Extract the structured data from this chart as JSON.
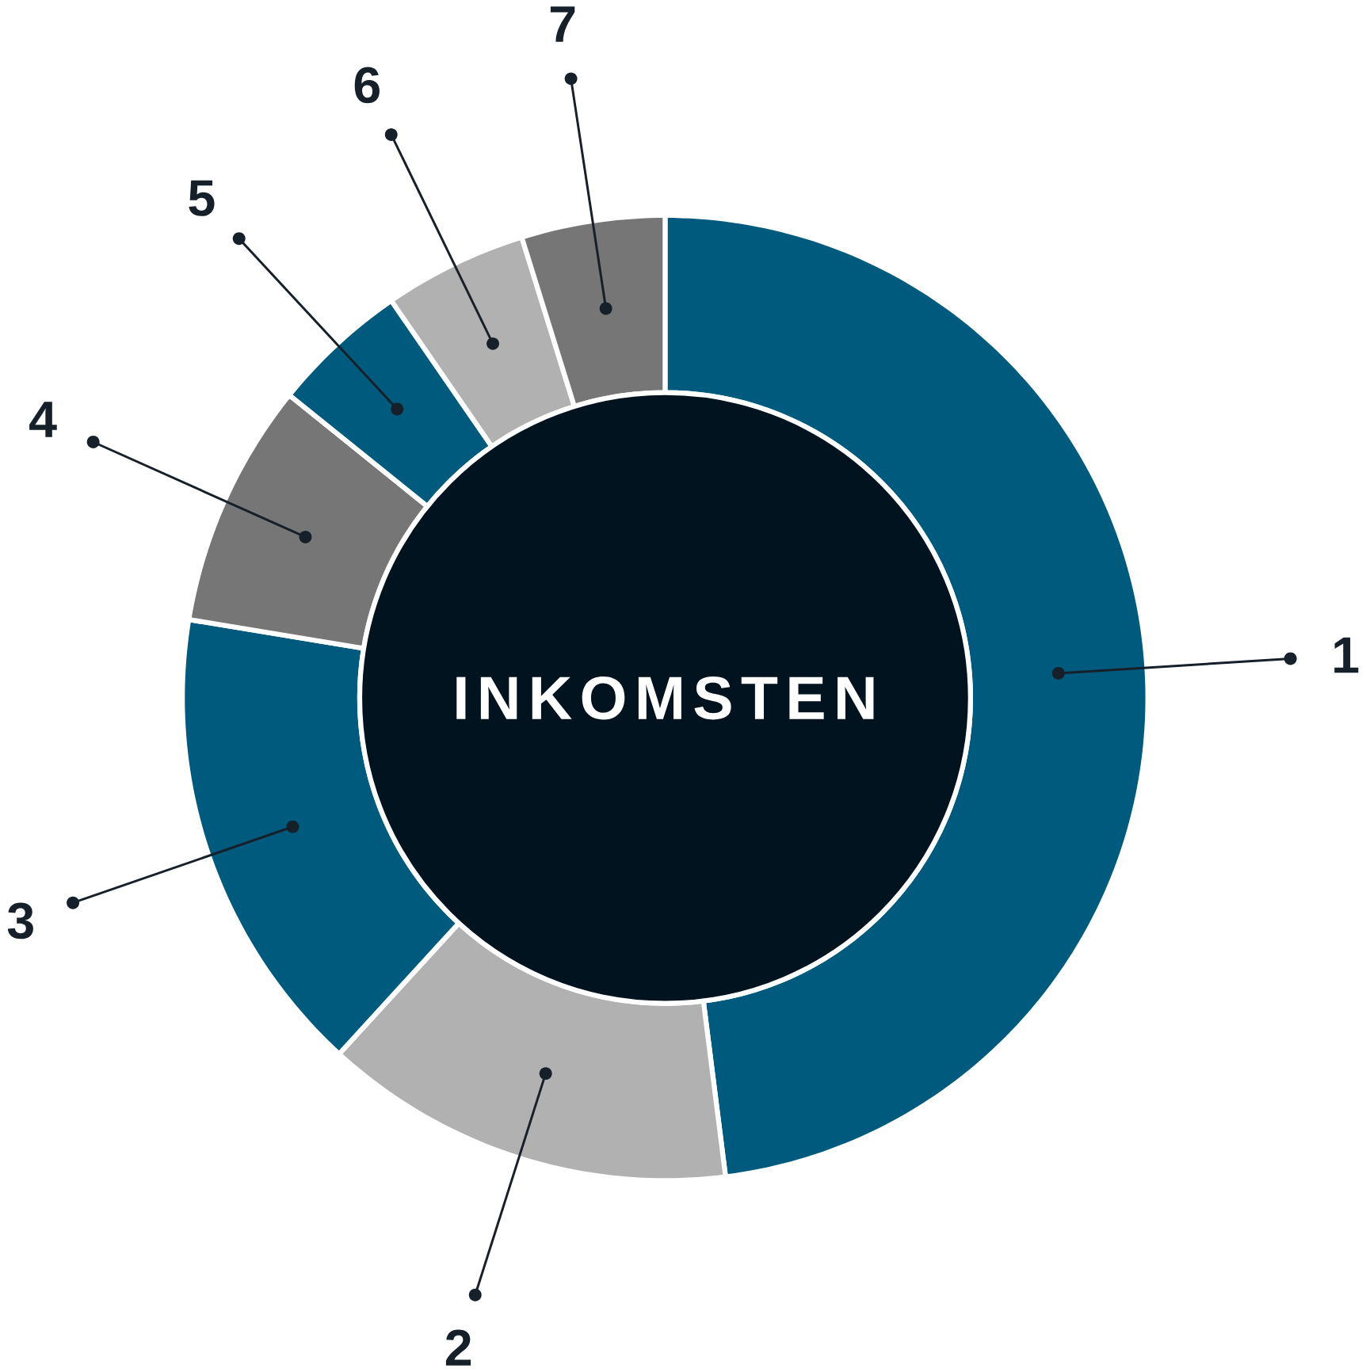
{
  "chart_data": {
    "type": "donut",
    "title": "INKOMSTEN",
    "categories": [
      "1",
      "2",
      "3",
      "4",
      "5",
      "6",
      "7"
    ],
    "values": [
      48,
      13.8,
      15.8,
      8.2,
      4.6,
      4.8,
      4.8
    ],
    "colors": [
      "#005a7d",
      "#b1b1b1",
      "#005a7d",
      "#767676",
      "#005a7d",
      "#b1b1b1",
      "#767676"
    ]
  }
}
